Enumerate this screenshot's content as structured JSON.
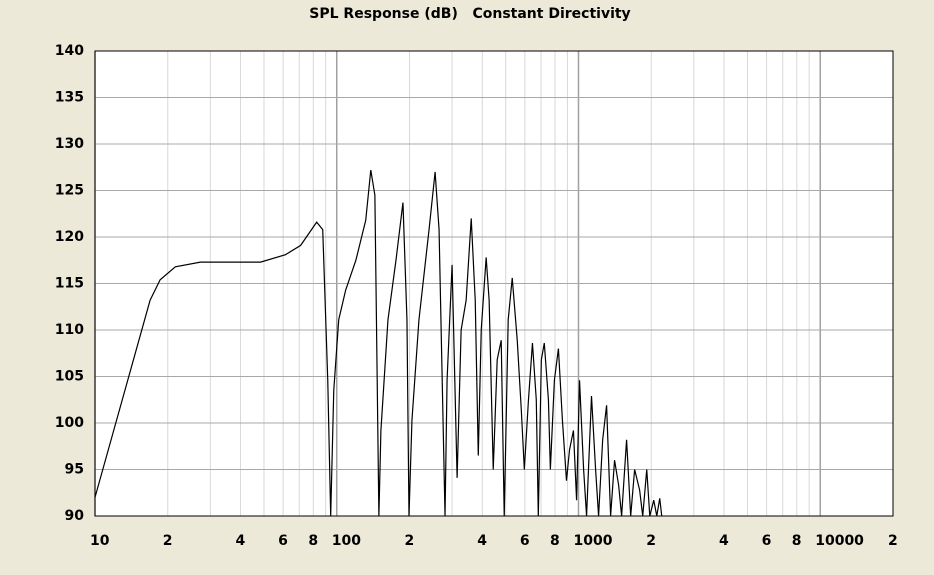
{
  "chart_data": {
    "type": "line",
    "title": "SPL Response (dB)   Constant Directivity",
    "x": [
      10,
      16.9,
      18.6,
      21.5,
      27.3,
      48.4,
      61.4,
      70.9,
      82.6,
      87.5,
      91.8,
      94.4,
      97.2,
      101.9,
      108.9,
      120,
      131.8,
      138.3,
      143.8,
      149.4,
      152.3,
      162.9,
      175.8,
      187.9,
      195.2,
      199,
      204.7,
      218.8,
      240.9,
      255.2,
      265,
      280.5,
      286,
      300,
      314.7,
      327,
      343,
      360,
      374,
      385,
      396,
      415,
      427,
      444,
      461,
      479,
      493,
      512,
      532,
      558,
      580,
      597,
      621,
      645,
      669,
      682,
      702,
      722,
      751,
      765,
      795,
      826,
      858,
      892,
      918,
      953,
      982,
      1010,
      1050,
      1080,
      1132,
      1177,
      1211,
      1259,
      1307,
      1358,
      1410,
      1466,
      1508,
      1581,
      1644,
      1707,
      1790,
      1844,
      1916,
      1972,
      2048,
      2108,
      2168,
      2210
    ],
    "series": [
      {
        "name": "SPL",
        "color": "#000000",
        "values": [
          92,
          113.2,
          115.4,
          116.8,
          117.3,
          117.3,
          118.1,
          119.1,
          121.6,
          120.8,
          104.6,
          90,
          103.5,
          111.1,
          114.3,
          117.5,
          121.8,
          127.2,
          124.5,
          90,
          99.2,
          111.1,
          117.5,
          123.7,
          111.1,
          90,
          100.3,
          111.1,
          120.8,
          127,
          120.8,
          90,
          104.6,
          117,
          94.1,
          110,
          113.2,
          122,
          113.2,
          96.5,
          110,
          117.8,
          113.2,
          95,
          106.8,
          108.9,
          90,
          111.1,
          115.6,
          108.9,
          101.4,
          95,
          102.5,
          108.6,
          102.5,
          90,
          106.8,
          108.6,
          102.5,
          95,
          104.6,
          108,
          100.3,
          93.8,
          97.1,
          99.2,
          91.7,
          104.6,
          95,
          90,
          102.9,
          95,
          90,
          98.2,
          101.9,
          90,
          96,
          93.3,
          90,
          98.2,
          90,
          95,
          92.8,
          90,
          95,
          90,
          91.7,
          90,
          91.9,
          90
        ]
      }
    ],
    "xlim": [
      10,
      20000
    ],
    "ylim": [
      90,
      140
    ],
    "xlog": true,
    "grid": true,
    "yticks": [
      90,
      95,
      100,
      105,
      110,
      115,
      120,
      125,
      130,
      135,
      140
    ],
    "xticks": [
      10,
      {
        "value": 20,
        "label": "2"
      },
      {
        "value": 40,
        "label": "4"
      },
      {
        "value": 60,
        "label": "6"
      },
      {
        "value": 80,
        "label": "8"
      },
      100,
      {
        "value": 200,
        "label": "2"
      },
      {
        "value": 400,
        "label": "4"
      },
      {
        "value": 600,
        "label": "6"
      },
      {
        "value": 800,
        "label": "8"
      },
      1000,
      {
        "value": 2000,
        "label": "2"
      },
      {
        "value": 4000,
        "label": "4"
      },
      {
        "value": 6000,
        "label": "6"
      },
      {
        "value": 8000,
        "label": "8"
      },
      10000,
      {
        "value": 20000,
        "label": "2"
      }
    ],
    "xminor": [
      30,
      50,
      70,
      90,
      300,
      500,
      700,
      900,
      3000,
      5000,
      7000,
      9000
    ]
  }
}
